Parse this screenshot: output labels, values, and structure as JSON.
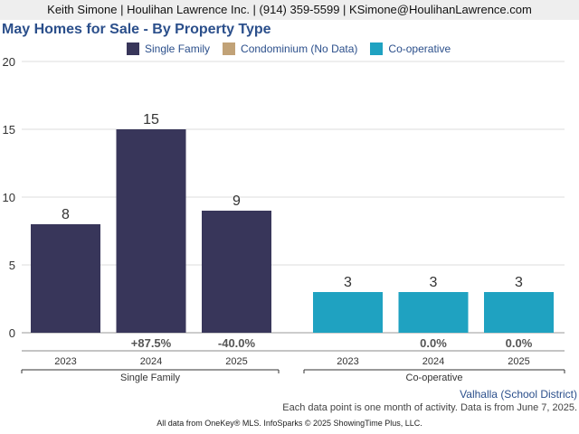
{
  "header": {
    "contact": "Keith Simone | Houlihan Lawrence Inc. | (914) 359-5599 | KSimone@HoulihanLawrence.com"
  },
  "chart_title": "May Homes for Sale - By Property Type",
  "legend": [
    {
      "label": "Single Family",
      "color": "#38365a"
    },
    {
      "label": "Condominium (No Data)",
      "color": "#c1a277"
    },
    {
      "label": "Co-operative",
      "color": "#1fa2c1"
    }
  ],
  "chart_data": {
    "type": "bar",
    "ylim": [
      0,
      20
    ],
    "yticks": [
      0,
      5,
      10,
      15,
      20
    ],
    "grid": true,
    "legend_position": "top",
    "groups": [
      {
        "name": "Single Family",
        "color": "#38365a",
        "categories": [
          "2023",
          "2024",
          "2025"
        ],
        "values": [
          8,
          15,
          9
        ],
        "changes": [
          "",
          "+87.5%",
          "-40.0%"
        ]
      },
      {
        "name": "Co-operative",
        "color": "#1fa2c1",
        "categories": [
          "2023",
          "2024",
          "2025"
        ],
        "values": [
          3,
          3,
          3
        ],
        "changes": [
          "",
          "0.0%",
          "0.0%"
        ]
      }
    ]
  },
  "region": "Valhalla (School District)",
  "note": "Each data point is one month of activity. Data is from June 7, 2025.",
  "footer": "All data from OneKey® MLS. InfoSparks © 2025 ShowingTime Plus, LLC."
}
